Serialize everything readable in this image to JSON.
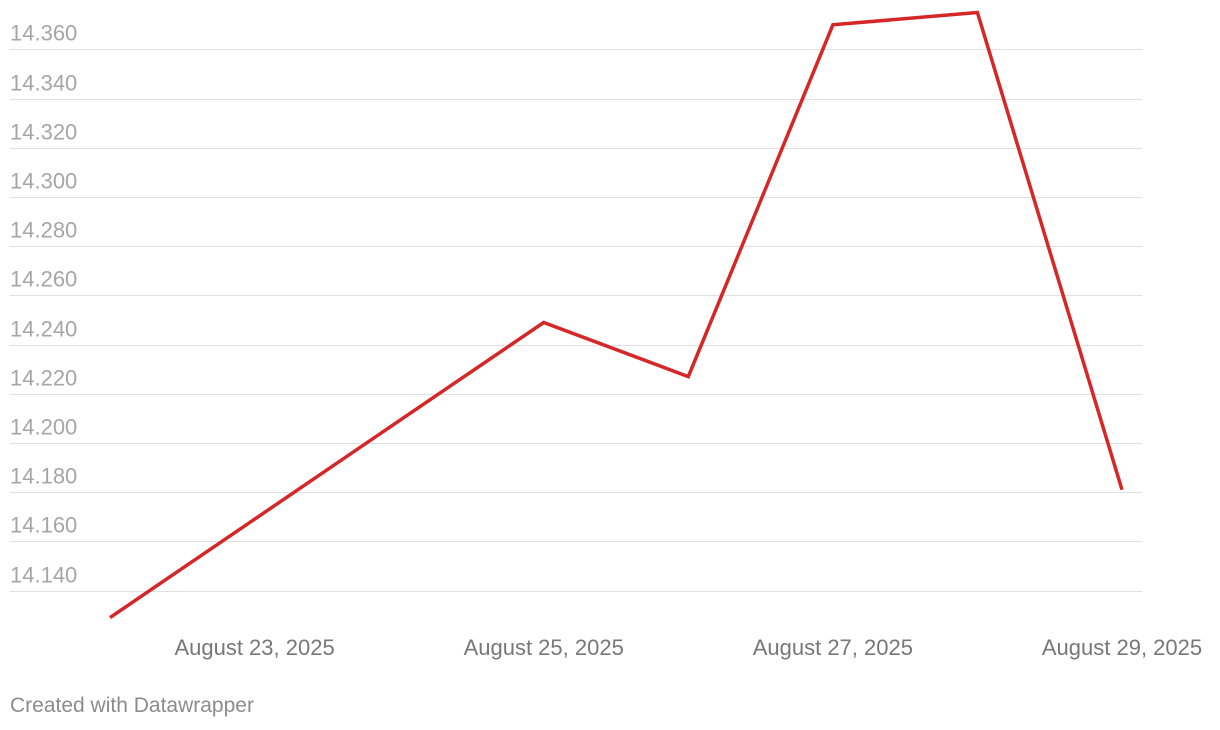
{
  "chart_data": {
    "type": "line",
    "title": "",
    "xlabel": "",
    "ylabel": "",
    "x": [
      "2025-08-22",
      "2025-08-23",
      "2025-08-24",
      "2025-08-25",
      "2025-08-26",
      "2025-08-27",
      "2025-08-28",
      "2025-08-29"
    ],
    "series": [
      {
        "values": [
          14.129,
          14.169,
          14.209,
          14.249,
          14.227,
          14.37,
          14.375,
          14.181
        ],
        "color": "#d62728"
      }
    ],
    "ylim": [
      14.126,
      14.374
    ],
    "y_ticks": [
      14.14,
      14.16,
      14.18,
      14.2,
      14.22,
      14.24,
      14.26,
      14.28,
      14.3,
      14.32,
      14.34,
      14.36
    ],
    "y_tick_labels": [
      "14.140",
      "14.160",
      "14.180",
      "14.200",
      "14.220",
      "14.240",
      "14.260",
      "14.280",
      "14.300",
      "14.320",
      "14.340",
      "14.360"
    ],
    "x_ticks": [
      "2025-08-23",
      "2025-08-25",
      "2025-08-27",
      "2025-08-29"
    ],
    "x_tick_labels": [
      "August 23, 2025",
      "August 25, 2025",
      "August 27, 2025",
      "August 29, 2025"
    ],
    "grid": "horizontal",
    "legend": "none"
  },
  "footer": {
    "credit": "Created with Datawrapper"
  }
}
